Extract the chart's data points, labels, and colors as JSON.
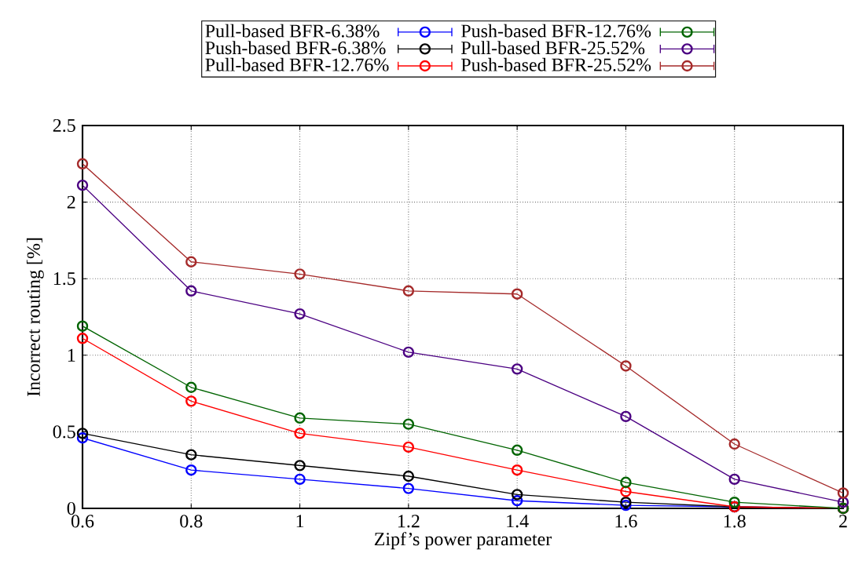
{
  "chart_data": {
    "type": "line",
    "xlabel": "Zipf’s power parameter",
    "ylabel": "Incorrect routing [%]",
    "x": [
      0.6,
      0.8,
      1.0,
      1.2,
      1.4,
      1.6,
      1.8,
      2.0
    ],
    "series": [
      {
        "name": "Pull-based BFR-6.38%",
        "color": "#0000ff",
        "values": [
          0.46,
          0.25,
          0.19,
          0.13,
          0.05,
          0.02,
          0.01,
          0.0
        ]
      },
      {
        "name": "Push-based BFR-6.38%",
        "color": "#000000",
        "values": [
          0.49,
          0.35,
          0.28,
          0.21,
          0.09,
          0.04,
          0.01,
          0.0
        ]
      },
      {
        "name": "Pull-based BFR-12.76%",
        "color": "#ff0000",
        "values": [
          1.11,
          0.7,
          0.49,
          0.4,
          0.25,
          0.11,
          0.01,
          0.0
        ]
      },
      {
        "name": "Push-based BFR-12.76%",
        "color": "#006400",
        "values": [
          1.19,
          0.79,
          0.59,
          0.55,
          0.38,
          0.17,
          0.04,
          0.0
        ]
      },
      {
        "name": "Pull-based BFR-25.52%",
        "color": "#4b0082",
        "values": [
          2.11,
          1.42,
          1.27,
          1.02,
          0.91,
          0.6,
          0.19,
          0.04
        ]
      },
      {
        "name": "Push-based BFR-25.52%",
        "color": "#a52a2a",
        "values": [
          2.25,
          1.61,
          1.53,
          1.42,
          1.4,
          0.93,
          0.42,
          0.1
        ]
      }
    ],
    "xlim": [
      0.6,
      2
    ],
    "ylim": [
      0,
      2.5
    ],
    "xticks": [
      0.6,
      0.8,
      1,
      1.2,
      1.4,
      1.6,
      1.8,
      2
    ],
    "yticks": [
      0,
      0.5,
      1,
      1.5,
      2,
      2.5
    ],
    "grid": true,
    "legend": "top",
    "marker": "circle",
    "line_style": "solid"
  }
}
